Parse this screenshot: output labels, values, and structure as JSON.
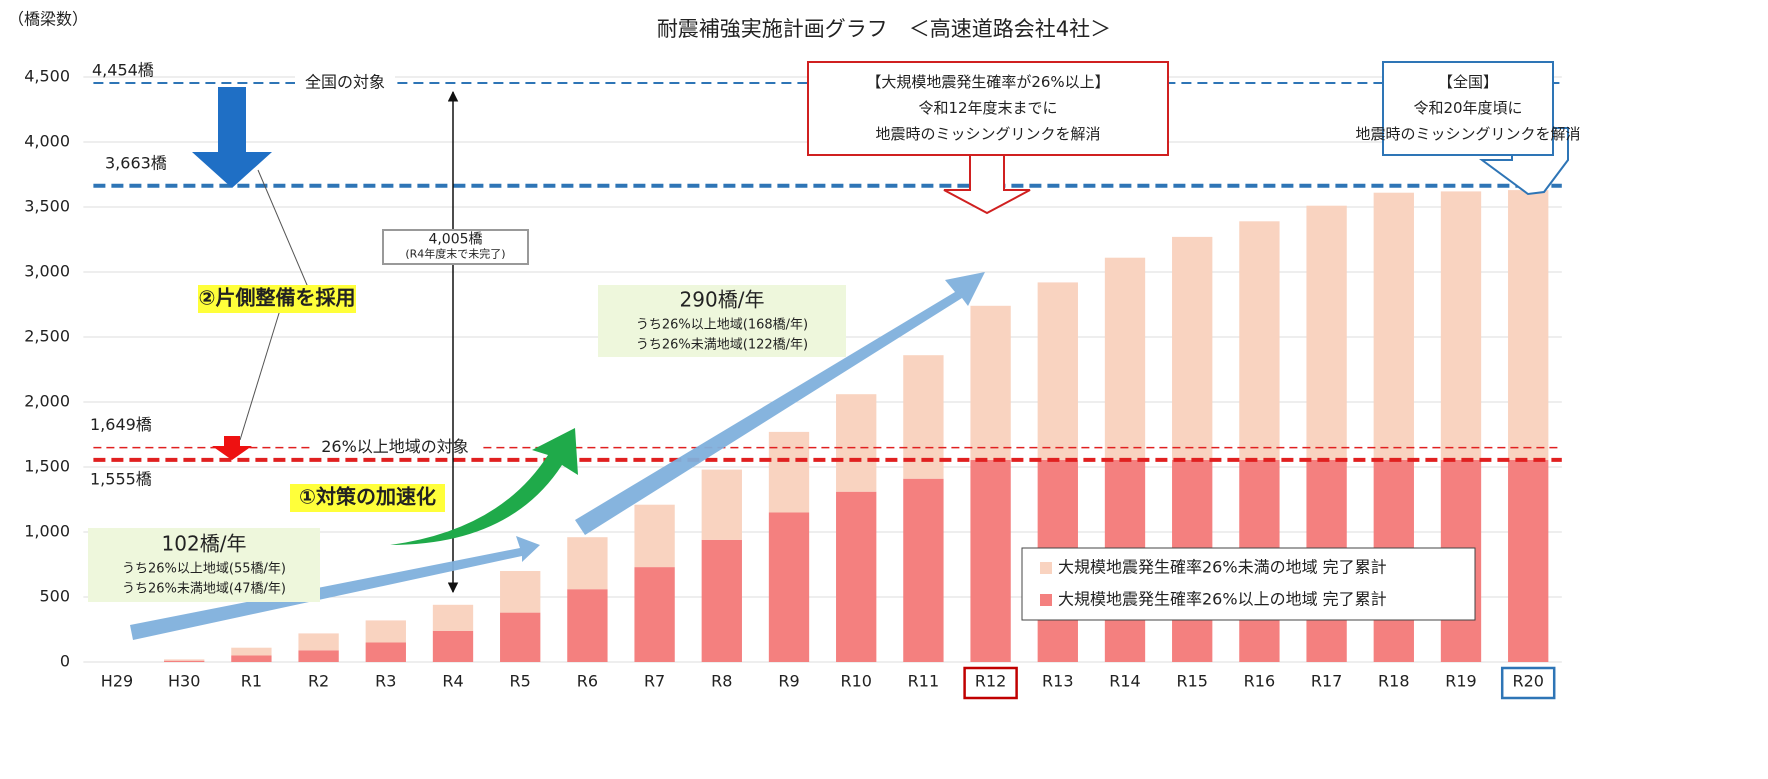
{
  "chart_data": {
    "type": "stacked_bar",
    "title": "耐震補強実施計画グラフ　＜高速道路会社4社＞",
    "ylabel": "（橋梁数）",
    "categories": [
      "H29",
      "H30",
      "R1",
      "R2",
      "R3",
      "R4",
      "R5",
      "R6",
      "R7",
      "R8",
      "R9",
      "R10",
      "R11",
      "R12",
      "R13",
      "R14",
      "R15",
      "R16",
      "R17",
      "R18",
      "R19",
      "R20"
    ],
    "series": [
      {
        "name": "大規模地震発生確率26%以上の地域 完了累計",
        "color": "#f4807f",
        "values": [
          0,
          10,
          50,
          90,
          150,
          240,
          380,
          560,
          730,
          940,
          1150,
          1310,
          1410,
          1555,
          1555,
          1555,
          1555,
          1555,
          1555,
          1555,
          1555,
          1555
        ]
      },
      {
        "name": "大規模地震発生確率26%未満の地域 完了累計",
        "color": "#f9d3c0",
        "values": [
          0,
          10,
          60,
          130,
          170,
          200,
          320,
          400,
          480,
          540,
          620,
          750,
          950,
          1185,
          1365,
          1555,
          1715,
          1835,
          1955,
          2055,
          2065,
          2075
        ]
      }
    ],
    "ylim": [
      0,
      4500
    ],
    "yticks": [
      0,
      {
        "value": 500,
        "label": "500"
      },
      {
        "value": 1000,
        "label": "1,000"
      },
      {
        "value": 1500,
        "label": "1,500"
      },
      {
        "value": 2000,
        "label": "2,000"
      },
      {
        "value": 2500,
        "label": "2,500"
      },
      {
        "value": 3000,
        "label": "3,000"
      },
      {
        "value": 3500,
        "label": "3,500"
      },
      {
        "value": 4000,
        "label": "4,000"
      },
      {
        "value": 4500,
        "label": "4,500"
      }
    ],
    "grid": true,
    "legend": "lower right",
    "reference_lines": [
      {
        "value": 4454,
        "label": "4,454橋",
        "name": "全国の対象",
        "color": "#2e75b6"
      },
      {
        "value": 3663,
        "label": "3,663橋",
        "color": "#2e75b6"
      },
      {
        "value": 1649,
        "label": "1,649橋",
        "name": "26%以上地域の対象",
        "color": "#e02020"
      },
      {
        "value": 1555,
        "label": "1,555橋",
        "color": "#e02020"
      }
    ],
    "category_highlights": [
      {
        "category": "R12",
        "color": "#c00000"
      },
      {
        "category": "R20",
        "color": "#2e75b6"
      }
    ],
    "notes": [
      {
        "lines": [
          "4,005橋",
          "(R4年度末で未完了)"
        ]
      },
      {
        "lines": [
          "②片側整備を採用"
        ]
      },
      {
        "lines": [
          "①対策の加速化"
        ]
      },
      {
        "lines": [
          "102橋/年",
          "うち26%以上地域(55橋/年)",
          "うち26%未満地域(47橋/年)"
        ]
      },
      {
        "lines": [
          "290橋/年",
          "うち26%以上地域(168橋/年)",
          "うち26%未満地域(122橋/年)"
        ]
      },
      {
        "lines": [
          "【大規模地震発生確率が26%以上】",
          "令和12年度末までに",
          "地震時のミッシングリンクを解消"
        ]
      },
      {
        "lines": [
          "【全国】",
          "令和20年度頃に",
          "地震時のミッシングリンクを解消"
        ]
      }
    ]
  }
}
